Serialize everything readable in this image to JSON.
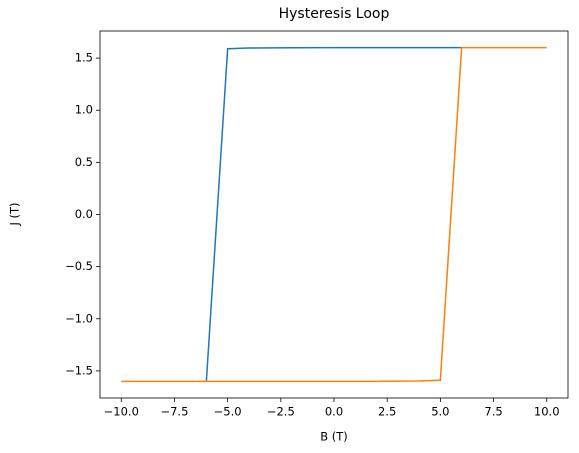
{
  "chart_data": {
    "type": "line",
    "title": "Hysteresis Loop",
    "x_label": "B (T)",
    "y_label": "J (T)",
    "series": [
      {
        "color": "#1f77b4",
        "x": [
          -6,
          -5,
          -4,
          -2,
          0,
          2,
          4,
          6
        ],
        "values": [
          -1.6,
          1.59,
          1.597,
          1.599,
          1.6,
          1.6,
          1.6,
          1.6
        ]
      },
      {
        "color": "#ff7f0e",
        "x": [
          -10,
          -8,
          -6,
          -4,
          -2,
          0,
          2,
          4,
          5,
          6,
          8,
          10
        ],
        "values": [
          -1.6,
          -1.6,
          -1.6,
          -1.6,
          -1.6,
          -1.6,
          -1.6,
          -1.597,
          -1.59,
          1.6,
          1.6,
          1.6
        ]
      }
    ],
    "xlim": [
      -11,
      11
    ],
    "ylim": [
      -1.76,
      1.76
    ],
    "xticks": [
      {
        "value": -10,
        "label": "−10.0"
      },
      {
        "value": -7.5,
        "label": "−7.5"
      },
      {
        "value": -5,
        "label": "−5.0"
      },
      {
        "value": -2.5,
        "label": "−2.5"
      },
      {
        "value": 0,
        "label": "0.0"
      },
      {
        "value": 2.5,
        "label": "2.5"
      },
      {
        "value": 5,
        "label": "5.0"
      },
      {
        "value": 7.5,
        "label": "7.5"
      },
      {
        "value": 10,
        "label": "10.0"
      }
    ],
    "yticks": [
      {
        "value": -1.5,
        "label": "−1.5"
      },
      {
        "value": -1,
        "label": "−1.0"
      },
      {
        "value": -0.5,
        "label": "−0.5"
      },
      {
        "value": 0,
        "label": "0.0"
      },
      {
        "value": 0.5,
        "label": "0.5"
      },
      {
        "value": 1,
        "label": "1.0"
      },
      {
        "value": 1.5,
        "label": "1.5"
      }
    ],
    "grid": false
  }
}
